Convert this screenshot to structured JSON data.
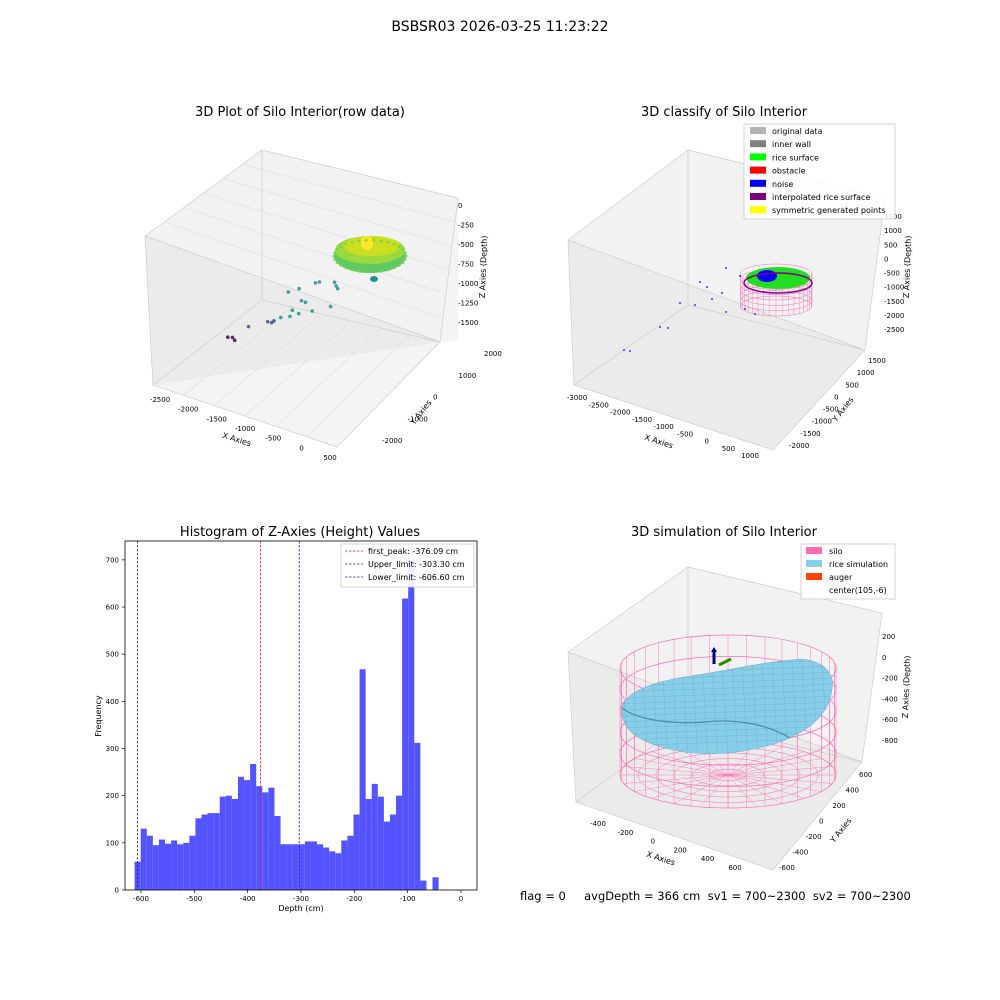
{
  "figure": {
    "suptitle": "BSBSR03 2026-03-25 11:23:22",
    "footer": "flag = 0     avgDepth = 366 cm  sv1 = 700~2300  sv2 = 700~2300"
  },
  "chart_data": [
    {
      "type": "scatter",
      "title": "3D Plot of Silo Interior(row data)",
      "xlabel": "X Axies",
      "ylabel": "Y Axies",
      "zlabel": "Z Axies (Depth)",
      "x_ticks": [
        "-2500",
        "-2000",
        "-1500",
        "-1000",
        "-500",
        "0",
        "500"
      ],
      "y_ticks": [
        "-2000",
        "-1000",
        "0",
        "1000",
        "2000"
      ],
      "z_ticks": [
        "0",
        "-250",
        "-500",
        "-750",
        "-1000",
        "-1250",
        "-1500"
      ],
      "colormap": [
        "#440154",
        "#3b528b",
        "#21918c",
        "#5ec962",
        "#fde725"
      ],
      "scattered_points": [
        {
          "x": -2300,
          "y": 0,
          "z": -1550
        },
        {
          "x": -2250,
          "y": 80,
          "z": -1560
        },
        {
          "x": -2150,
          "y": -60,
          "z": -1540
        },
        {
          "x": -1800,
          "y": -300,
          "z": -1250
        },
        {
          "x": -1500,
          "y": -200,
          "z": -1150
        },
        {
          "x": -1450,
          "y": -150,
          "z": -1160
        },
        {
          "x": -1300,
          "y": -400,
          "z": -1050
        },
        {
          "x": -1200,
          "y": -350,
          "z": -1000
        },
        {
          "x": -1100,
          "y": -100,
          "z": -950
        },
        {
          "x": -1100,
          "y": -200,
          "z": -1000
        },
        {
          "x": -900,
          "y": -300,
          "z": -900
        },
        {
          "x": -700,
          "y": -200,
          "z": -850
        },
        {
          "x": -1300,
          "y": 200,
          "z": -850
        },
        {
          "x": -1150,
          "y": 300,
          "z": -800
        },
        {
          "x": -1000,
          "y": 50,
          "z": -850
        },
        {
          "x": -950,
          "y": 100,
          "z": -870
        },
        {
          "x": -900,
          "y": 400,
          "z": -700
        },
        {
          "x": -850,
          "y": 450,
          "z": -690
        },
        {
          "x": -600,
          "y": 500,
          "z": -650
        },
        {
          "x": -550,
          "y": 450,
          "z": -670
        },
        {
          "x": -500,
          "y": 400,
          "z": -680
        },
        {
          "x": -500,
          "y": 100,
          "z": -820
        }
      ],
      "surface": {
        "center_x": 105,
        "center_y": -6,
        "radius": 650,
        "depth_range": [
          -606.6,
          -50
        ]
      }
    },
    {
      "type": "scatter",
      "title": "3D classify of Silo Interior",
      "xlabel": "X Axies",
      "ylabel": "Y Axies",
      "zlabel": "Z Axies (Depth)",
      "x_ticks": [
        "-3000",
        "-2500",
        "-2000",
        "-1500",
        "-1000",
        "-500",
        "0",
        "500",
        "1000"
      ],
      "y_ticks": [
        "-2000",
        "-1500",
        "-1000",
        "-500",
        "0",
        "500",
        "1000",
        "1500"
      ],
      "z_ticks": [
        "1500",
        "1000",
        "500",
        "0",
        "-500",
        "-1000",
        "-1500",
        "-2000",
        "-2500"
      ],
      "legend": [
        {
          "label": "original data",
          "color": "#b3b3b3"
        },
        {
          "label": "inner wall",
          "color": "#808080"
        },
        {
          "label": "rice surface",
          "color": "#00ff00"
        },
        {
          "label": "obstacle",
          "color": "#ff0000"
        },
        {
          "label": "noise",
          "color": "#0000ff"
        },
        {
          "label": "interpolated rice surface",
          "color": "#800080"
        },
        {
          "label": "symmetric generated points",
          "color": "#ffff00"
        }
      ],
      "silo_color": "#ff69b4"
    },
    {
      "type": "bar",
      "title": "Histogram of Z-Axies (Height) Values",
      "xlabel": "Depth (cm)",
      "ylabel": "Frequency",
      "bin_start": -612,
      "bin_width": 11.4,
      "counts": [
        60,
        130,
        115,
        95,
        107,
        98,
        105,
        97,
        100,
        115,
        152,
        160,
        163,
        163,
        198,
        200,
        193,
        240,
        233,
        267,
        220,
        207,
        217,
        157,
        97,
        97,
        97,
        97,
        103,
        103,
        97,
        90,
        82,
        78,
        105,
        115,
        160,
        468,
        193,
        225,
        198,
        145,
        160,
        200,
        618,
        700,
        312,
        20,
        0,
        27
      ],
      "xlim": [
        -630,
        30
      ],
      "ylim": [
        0,
        740
      ],
      "x_ticks": [
        "-600",
        "-500",
        "-400",
        "-300",
        "-200",
        "-100",
        "0"
      ],
      "y_ticks": [
        "0",
        "100",
        "200",
        "300",
        "400",
        "500",
        "600",
        "700"
      ],
      "bar_color": "#5050ff",
      "lines": [
        {
          "label": "first_peak: -376.09 cm",
          "x": -376.09,
          "color": "#d62020"
        },
        {
          "label": "Upper_limit: -303.30 cm",
          "x": -303.3,
          "color": "#1c1cb0"
        },
        {
          "label": "Lower_limit: -606.60 cm",
          "x": -606.6,
          "color": "#1c1cb0"
        }
      ],
      "legend_position": "top-right"
    },
    {
      "type": "area",
      "title": "3D simulation of Silo Interior",
      "xlabel": "X Axies",
      "ylabel": "Y Axies",
      "zlabel": "Z Axies (Depth)",
      "x_ticks": [
        "-400",
        "-200",
        "0",
        "200",
        "400",
        "600"
      ],
      "y_ticks": [
        "-600",
        "-400",
        "-200",
        "0",
        "200",
        "400",
        "600"
      ],
      "z_ticks": [
        "200",
        "0",
        "-200",
        "-400",
        "-600",
        "-800"
      ],
      "legend": [
        {
          "label": "silo",
          "color": "#ff69b4"
        },
        {
          "label": "rice simulation",
          "color": "#87ceeb"
        },
        {
          "label": "auger",
          "color": "#ff4500"
        },
        {
          "label": "center(105,-6)",
          "color": ""
        }
      ]
    }
  ]
}
